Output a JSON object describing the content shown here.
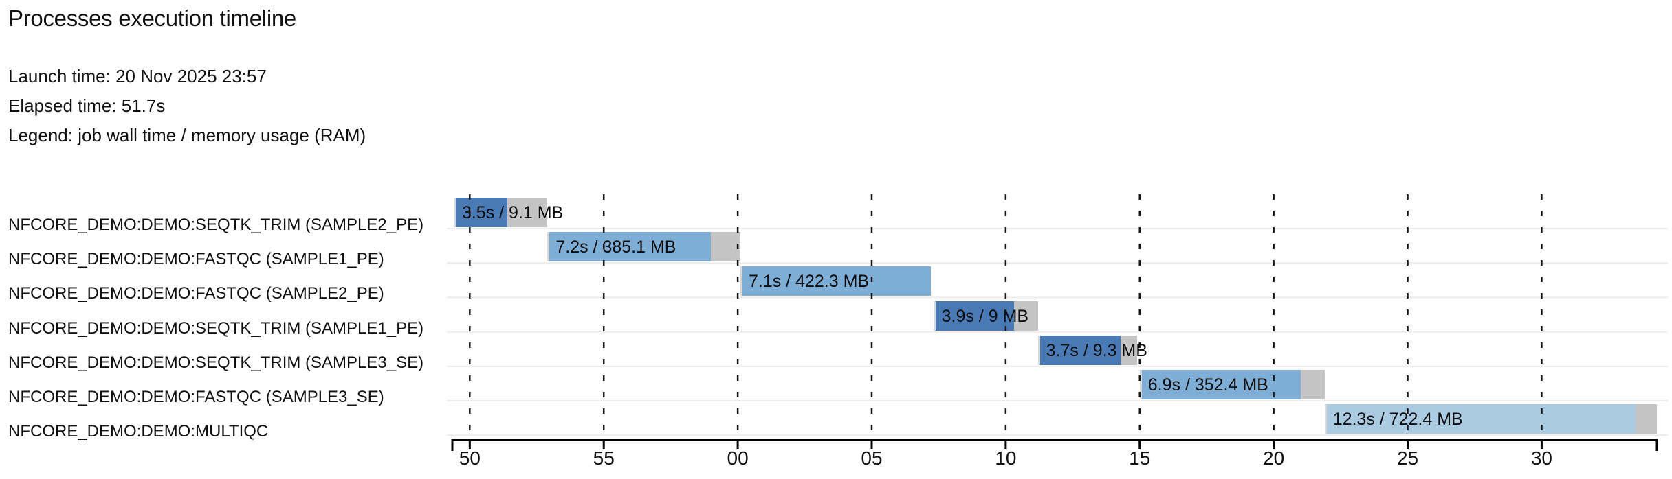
{
  "header": {
    "title": "Processes execution timeline",
    "launch_time": "Launch time: 20 Nov 2025 23:57",
    "elapsed_time": "Elapsed time: 51.7s",
    "legend": "Legend: job wall time / memory usage (RAM)"
  },
  "chart_data": {
    "type": "gantt",
    "title": "Processes execution timeline",
    "x_axis": {
      "unit": "seconds (clock seconds, wrapping at the minute)",
      "min": 49.35,
      "max": 94.3,
      "grid": "dashed-vertical"
    },
    "ticks": [
      {
        "t": 50,
        "label": "50"
      },
      {
        "t": 55,
        "label": "55"
      },
      {
        "t": 60,
        "label": "00"
      },
      {
        "t": 65,
        "label": "05"
      },
      {
        "t": 70,
        "label": "10"
      },
      {
        "t": 75,
        "label": "15"
      },
      {
        "t": 80,
        "label": "20"
      },
      {
        "t": 85,
        "label": "25"
      },
      {
        "t": 90,
        "label": "30"
      }
    ],
    "colors": {
      "SEQTK_TRIM": "#4a7ab5",
      "FASTQC": "#7eaed6",
      "MULTIQC": "#abcbe2",
      "memory_tail": "#c4c4c4",
      "submit_sliver": "#d9d9d9",
      "separator": "#ececec",
      "grid": "#141414",
      "axis": "#000000"
    },
    "tasks": [
      {
        "process": "NFCORE_DEMO:DEMO:SEQTK_TRIM (SAMPLE2_PE)",
        "label": "3.5s / 9.1 MB",
        "start": 49.4,
        "run_end": 51.4,
        "end": 52.9,
        "color_key": "SEQTK_TRIM"
      },
      {
        "process": "NFCORE_DEMO:DEMO:FASTQC (SAMPLE1_PE)",
        "label": "7.2s / 385.1 MB",
        "start": 52.9,
        "run_end": 59.0,
        "end": 60.1,
        "color_key": "FASTQC"
      },
      {
        "process": "NFCORE_DEMO:DEMO:FASTQC (SAMPLE2_PE)",
        "label": "7.1s / 422.3 MB",
        "start": 60.1,
        "run_end": 67.2,
        "end": 67.2,
        "color_key": "FASTQC"
      },
      {
        "process": "NFCORE_DEMO:DEMO:SEQTK_TRIM (SAMPLE1_PE)",
        "label": "3.9s / 9 MB",
        "start": 67.3,
        "run_end": 70.3,
        "end": 71.2,
        "color_key": "SEQTK_TRIM"
      },
      {
        "process": "NFCORE_DEMO:DEMO:SEQTK_TRIM (SAMPLE3_SE)",
        "label": "3.7s / 9.3 MB",
        "start": 71.2,
        "run_end": 74.3,
        "end": 74.9,
        "color_key": "SEQTK_TRIM"
      },
      {
        "process": "NFCORE_DEMO:DEMO:FASTQC (SAMPLE3_SE)",
        "label": "6.9s / 352.4 MB",
        "start": 75.0,
        "run_end": 81.0,
        "end": 81.9,
        "color_key": "FASTQC"
      },
      {
        "process": "NFCORE_DEMO:DEMO:MULTIQC",
        "label": "12.3s / 722.4 MB",
        "start": 81.9,
        "run_end": 93.5,
        "end": 94.3,
        "color_key": "MULTIQC"
      }
    ]
  }
}
